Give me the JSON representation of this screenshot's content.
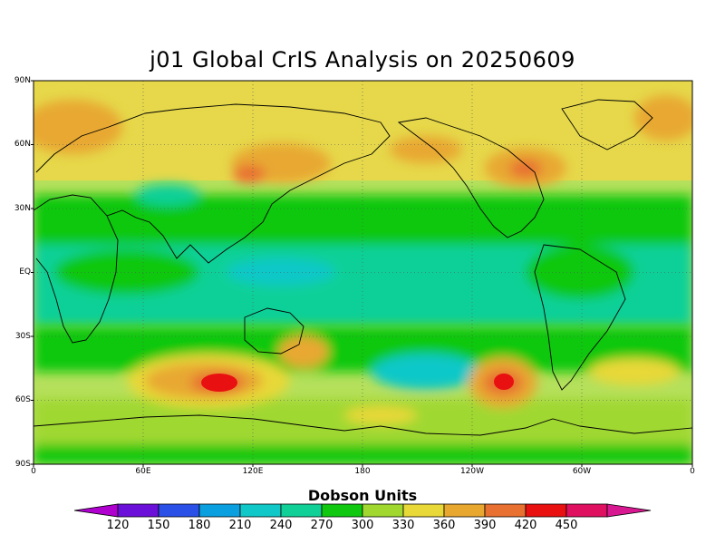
{
  "title": "j01 Global CrIS Analysis on 20250609",
  "lat_labels": [
    "90N",
    "60N",
    "30N",
    "EQ",
    "30S",
    "60S",
    "90S"
  ],
  "lon_labels": [
    "0",
    "60E",
    "120E",
    "180",
    "120W",
    "60W",
    "0"
  ],
  "colorbar": {
    "title": "Dobson Units",
    "ticks": [
      "120",
      "150",
      "180",
      "210",
      "240",
      "270",
      "300",
      "330",
      "360",
      "390",
      "420",
      "450"
    ],
    "colors": [
      "#b000d0",
      "#6a10d8",
      "#2a50e8",
      "#0aa0e0",
      "#10c8c8",
      "#10d098",
      "#10c810",
      "#a0d830",
      "#e8d838",
      "#e8a830",
      "#e87030",
      "#e81010",
      "#e01060",
      "#d81890"
    ]
  },
  "map": {
    "background_color": "#b5e05c",
    "projection": "equirectangular",
    "domain": {
      "lon": [
        0,
        360
      ],
      "lat": [
        -90,
        90
      ]
    }
  }
}
